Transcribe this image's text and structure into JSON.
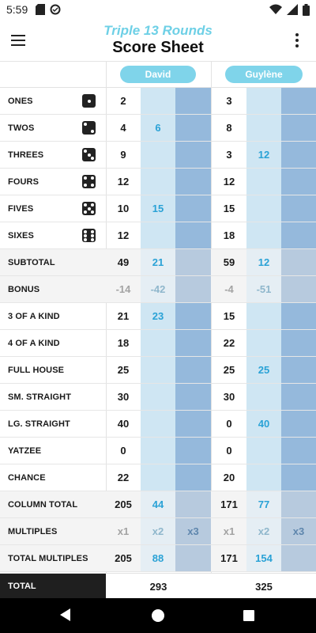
{
  "status_bar": {
    "time": "5:59"
  },
  "header": {
    "title_top": "Triple 13 Rounds",
    "title_main": "Score Sheet"
  },
  "players": [
    "David",
    "Guylène"
  ],
  "rows": [
    {
      "label": "ONES",
      "die": 1,
      "alt": false,
      "p1": [
        "2",
        "",
        ""
      ],
      "p2": [
        "3",
        "",
        ""
      ]
    },
    {
      "label": "TWOS",
      "die": 2,
      "alt": false,
      "p1": [
        "4",
        "6",
        ""
      ],
      "p2": [
        "8",
        "",
        ""
      ]
    },
    {
      "label": "THREES",
      "die": 3,
      "alt": false,
      "p1": [
        "9",
        "",
        ""
      ],
      "p2": [
        "3",
        "12",
        ""
      ]
    },
    {
      "label": "FOURS",
      "die": 4,
      "alt": false,
      "p1": [
        "12",
        "",
        ""
      ],
      "p2": [
        "12",
        "",
        ""
      ]
    },
    {
      "label": "FIVES",
      "die": 5,
      "alt": false,
      "p1": [
        "10",
        "15",
        ""
      ],
      "p2": [
        "15",
        "",
        ""
      ]
    },
    {
      "label": "SIXES",
      "die": 6,
      "alt": false,
      "p1": [
        "12",
        "",
        ""
      ],
      "p2": [
        "18",
        "",
        ""
      ]
    },
    {
      "label": "SUBTOTAL",
      "die": 0,
      "alt": true,
      "p1": [
        "49",
        "21",
        ""
      ],
      "p2": [
        "59",
        "12",
        ""
      ]
    },
    {
      "label": "BONUS",
      "die": 0,
      "alt": true,
      "p1": [
        "-14",
        "-42",
        ""
      ],
      "p2": [
        "-4",
        "-51",
        ""
      ]
    },
    {
      "label": "3 OF A KIND",
      "die": 0,
      "alt": false,
      "p1": [
        "21",
        "23",
        ""
      ],
      "p2": [
        "15",
        "",
        ""
      ]
    },
    {
      "label": "4 OF A KIND",
      "die": 0,
      "alt": false,
      "p1": [
        "18",
        "",
        ""
      ],
      "p2": [
        "22",
        "",
        ""
      ]
    },
    {
      "label": "FULL HOUSE",
      "die": 0,
      "alt": false,
      "p1": [
        "25",
        "",
        ""
      ],
      "p2": [
        "25",
        "25",
        ""
      ]
    },
    {
      "label": "SM. STRAIGHT",
      "die": 0,
      "alt": false,
      "p1": [
        "30",
        "",
        ""
      ],
      "p2": [
        "30",
        "",
        ""
      ]
    },
    {
      "label": "LG. STRAIGHT",
      "die": 0,
      "alt": false,
      "p1": [
        "40",
        "",
        ""
      ],
      "p2": [
        "0",
        "40",
        ""
      ]
    },
    {
      "label": "YATZEE",
      "die": 0,
      "alt": false,
      "p1": [
        "0",
        "",
        ""
      ],
      "p2": [
        "0",
        "",
        ""
      ]
    },
    {
      "label": "CHANCE",
      "die": 0,
      "alt": false,
      "p1": [
        "22",
        "",
        ""
      ],
      "p2": [
        "20",
        "",
        ""
      ]
    },
    {
      "label": "COLUMN TOTAL",
      "die": 0,
      "alt": true,
      "p1": [
        "205",
        "44",
        ""
      ],
      "p2": [
        "171",
        "77",
        ""
      ]
    },
    {
      "label": "MULTIPLES",
      "die": 0,
      "alt": true,
      "p1": [
        "x1",
        "x2",
        "x3"
      ],
      "p2": [
        "x1",
        "x2",
        "x3"
      ]
    },
    {
      "label": "TOTAL MULTIPLES",
      "die": 0,
      "alt": true,
      "p1": [
        "205",
        "88",
        ""
      ],
      "p2": [
        "171",
        "154",
        ""
      ]
    }
  ],
  "totals": {
    "label": "TOTAL",
    "p1": "293",
    "p2": "325"
  }
}
